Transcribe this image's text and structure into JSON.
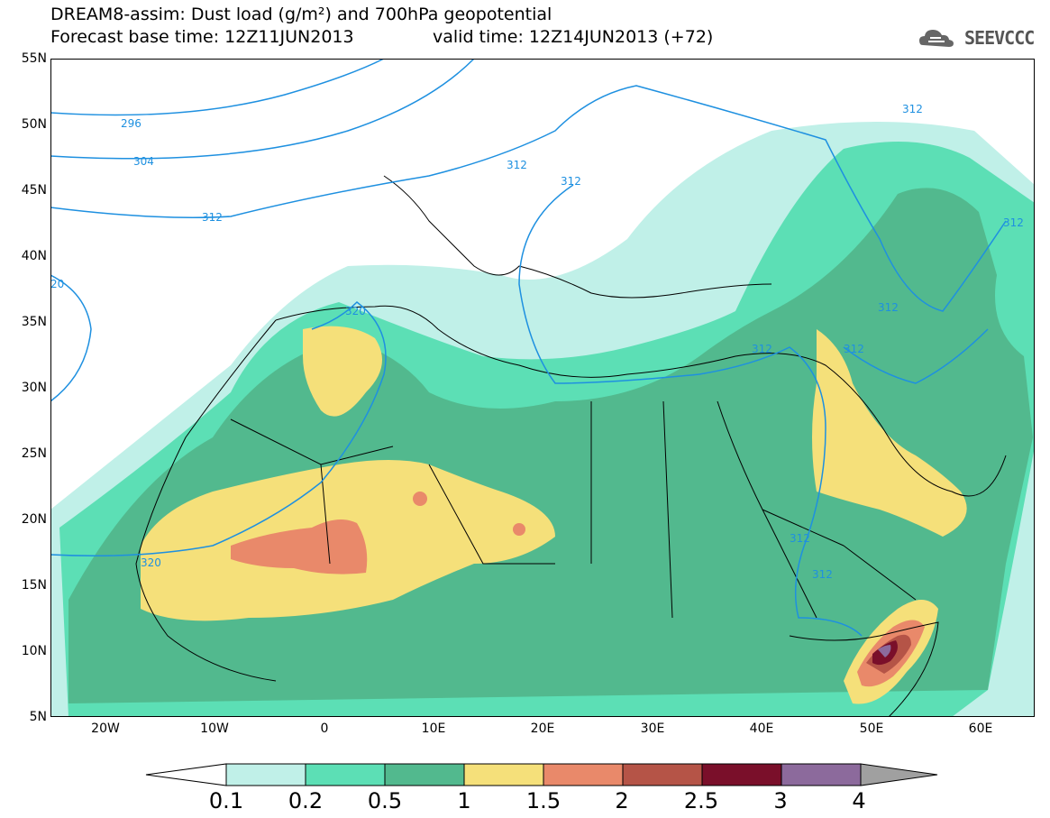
{
  "header": {
    "line1": "DREAM8-assim: Dust load (g/m²) and 700hPa geopotential",
    "line2_base": "Forecast base time: 12Z11JUN2013",
    "line2_valid": "valid time: 12Z14JUN2013 (+72)",
    "logo_text": "SEEVCCC"
  },
  "axes": {
    "lat_labels": [
      "55N",
      "50N",
      "45N",
      "40N",
      "35N",
      "30N",
      "25N",
      "20N",
      "15N",
      "10N",
      "5N"
    ],
    "lon_labels": [
      "20W",
      "10W",
      "0",
      "10E",
      "20E",
      "30E",
      "40E",
      "50E",
      "60E"
    ]
  },
  "contours": {
    "labels": [
      "296",
      "304",
      "312",
      "320",
      "20",
      "312",
      "312",
      "312",
      "312",
      "312",
      "312",
      "312",
      "312",
      "312",
      "320"
    ]
  },
  "colorbar": {
    "levels": [
      "0.1",
      "0.2",
      "0.5",
      "1",
      "1.5",
      "2",
      "2.5",
      "3",
      "4"
    ],
    "colors": [
      "#c0f0e8",
      "#5cdfb5",
      "#52b98e",
      "#f5e07a",
      "#e9896a",
      "#b55447",
      "#7a0f2a",
      "#8c6a9c",
      "#a0a0a0"
    ]
  }
}
